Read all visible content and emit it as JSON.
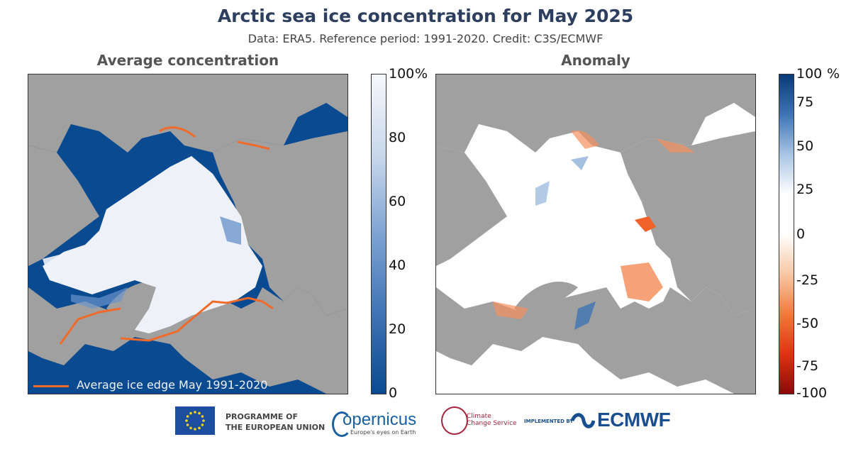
{
  "header": {
    "title": "Arctic sea ice concentration for May 2025",
    "subtitle": "Data: ERA5.  Reference period: 1991-2020.  Credit: C3S/ECMWF"
  },
  "left_panel": {
    "title": "Average concentration",
    "legend_label": "Average ice edge May 1991-2020",
    "legend_color": "#f06b2a",
    "colorbar": {
      "ticks": [
        "100",
        "80",
        "60",
        "40",
        "20",
        "0"
      ],
      "unit": "%",
      "color_top": "#f6f8fb",
      "color_bottom": "#0b4a8f"
    }
  },
  "right_panel": {
    "title": "Anomaly",
    "colorbar": {
      "ticks": [
        "100",
        "75",
        "50",
        "25",
        "0",
        "-25",
        "-50",
        "-75",
        "-100"
      ],
      "unit": "%",
      "color_positive": "#0a3a78",
      "color_zero": "#ffffff",
      "color_negative": "#8b0a0a"
    }
  },
  "colors": {
    "ocean": "#0a4a91",
    "land": "#a0a0a0",
    "ice": "#eef2f8",
    "anomaly_neg": "#f0622a",
    "anomaly_pos": "#3d74b5"
  },
  "footer": {
    "eu_label_1": "PROGRAMME OF",
    "eu_label_2": "THE EUROPEAN UNION",
    "copernicus_label": "opernicus",
    "copernicus_tagline": "Europe's eyes on Earth",
    "c3s_label_1": "Climate",
    "c3s_label_2": "Change Service",
    "implemented_by": "IMPLEMENTED BY",
    "ecmwf_label": "ECMWF"
  }
}
